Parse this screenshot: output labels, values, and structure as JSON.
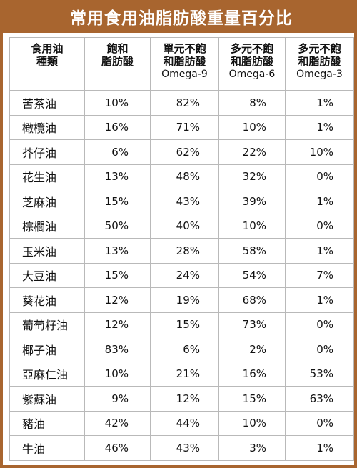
{
  "title": "常用食用油脂肪酸重量百分比",
  "headers": [
    [
      "食用油",
      "種類"
    ],
    [
      "飽和",
      "脂肪酸"
    ],
    [
      "單元不飽",
      "和脂肪酸",
      "Omega-9"
    ],
    [
      "多元不飽",
      "和脂肪酸",
      "Omega-6"
    ],
    [
      "多元不飽",
      "和脂肪酸",
      "Omega-3"
    ]
  ],
  "rows": [
    [
      "苦茶油",
      "10%",
      "82%",
      "8%",
      "1%"
    ],
    [
      "橄欖油",
      "16%",
      "71%",
      "10%",
      "1%"
    ],
    [
      "芥仔油",
      "6%",
      "62%",
      "22%",
      "10%"
    ],
    [
      "花生油",
      "13%",
      "48%",
      "32%",
      "0%"
    ],
    [
      "芝麻油",
      "15%",
      "43%",
      "39%",
      "1%"
    ],
    [
      "棕櫚油",
      "50%",
      "40%",
      "10%",
      "0%"
    ],
    [
      "玉米油",
      "13%",
      "28%",
      "58%",
      "1%"
    ],
    [
      "大豆油",
      "15%",
      "24%",
      "54%",
      "7%"
    ],
    [
      "葵花油",
      "12%",
      "19%",
      "68%",
      "1%"
    ],
    [
      "葡萄籽油",
      "12%",
      "15%",
      "73%",
      "0%"
    ],
    [
      "椰子油",
      "83%",
      "6%",
      "2%",
      "0%"
    ],
    [
      "亞麻仁油",
      "10%",
      "21%",
      "16%",
      "53%"
    ],
    [
      "紫蘇油",
      "9%",
      "12%",
      "15%",
      "63%"
    ],
    [
      "豬油",
      "42%",
      "44%",
      "10%",
      "0%"
    ],
    [
      "牛油",
      "46%",
      "43%",
      "3%",
      "1%"
    ]
  ],
  "colors": {
    "accent": "#a8652f",
    "grid": "#b9b9b9",
    "text": "#111111"
  }
}
